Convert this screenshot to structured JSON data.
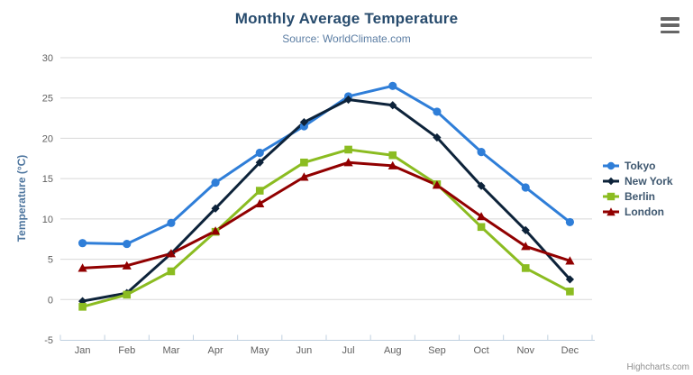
{
  "chart_data": {
    "type": "line",
    "title": "Monthly Average Temperature",
    "subtitle": "Source: WorldClimate.com",
    "ylabel": "Temperature (°C)",
    "xlabel": "",
    "ylim": [
      -5,
      30
    ],
    "yticks": [
      -5,
      0,
      5,
      10,
      15,
      20,
      25,
      30
    ],
    "grid": "horizontal-only",
    "legend_position": "right",
    "categories": [
      "Jan",
      "Feb",
      "Mar",
      "Apr",
      "May",
      "Jun",
      "Jul",
      "Aug",
      "Sep",
      "Oct",
      "Nov",
      "Dec"
    ],
    "series": [
      {
        "name": "Tokyo",
        "color": "#2f7ed8",
        "marker": "circle",
        "values": [
          7.0,
          6.9,
          9.5,
          14.5,
          18.2,
          21.5,
          25.2,
          26.5,
          23.3,
          18.3,
          13.9,
          9.6
        ]
      },
      {
        "name": "New York",
        "color": "#0d233a",
        "marker": "diamond",
        "values": [
          -0.2,
          0.8,
          5.7,
          11.3,
          17.0,
          22.0,
          24.8,
          24.1,
          20.1,
          14.1,
          8.6,
          2.5
        ]
      },
      {
        "name": "Berlin",
        "color": "#8bbc21",
        "marker": "square",
        "values": [
          -0.9,
          0.6,
          3.5,
          8.4,
          13.5,
          17.0,
          18.6,
          17.9,
          14.3,
          9.0,
          3.9,
          1.0
        ]
      },
      {
        "name": "London",
        "color": "#910000",
        "marker": "triangle",
        "values": [
          3.9,
          4.2,
          5.7,
          8.5,
          11.9,
          15.2,
          17.0,
          16.6,
          14.2,
          10.3,
          6.6,
          4.8
        ]
      }
    ],
    "credits": "Highcharts.com"
  },
  "colors": {
    "title": "#274b6d",
    "subtitle": "#5b7da3",
    "axis_title": "#4d759e",
    "tick_label": "#606060",
    "grid_line": "#d8d8d8",
    "axis_line": "#c0d0e0",
    "legend_text": "#3e576f",
    "credit_text": "#909090",
    "burger_icon": "#666666"
  },
  "icons": {
    "hamburger": "export-context-menu"
  }
}
